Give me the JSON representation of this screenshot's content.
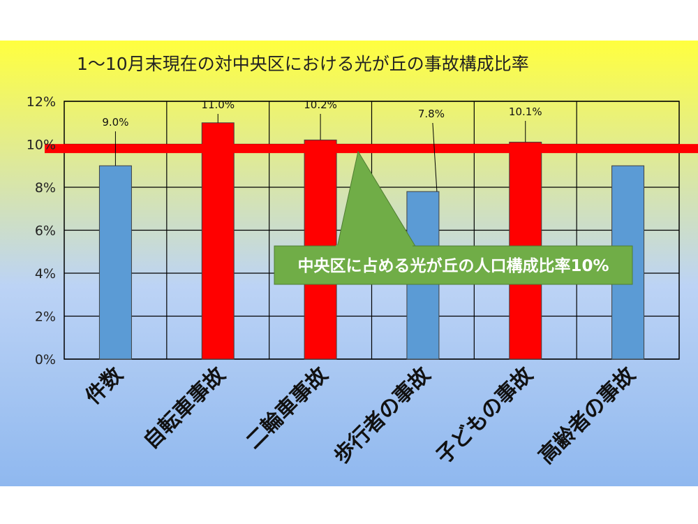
{
  "chart_data": {
    "type": "bar",
    "title": "1～10月末現在の対中央区における光が丘の事故構成比率",
    "categories": [
      "件数",
      "自転車事故",
      "二輪車事故",
      "歩行者の事故",
      "子どもの事故",
      "高齢者の事故"
    ],
    "values": [
      9.0,
      11.0,
      10.2,
      7.8,
      10.1,
      9.0
    ],
    "data_labels": [
      "9.0%",
      "11.0%",
      "10.2%",
      "7.8%",
      "10.1%",
      ""
    ],
    "bar_colors": [
      "#5b9bd5",
      "#ff0000",
      "#ff0000",
      "#5b9bd5",
      "#ff0000",
      "#5b9bd5"
    ],
    "y_ticks": [
      "0%",
      "2%",
      "4%",
      "6%",
      "8%",
      "10%",
      "12%"
    ],
    "ylim": [
      0,
      12
    ],
    "grid": true,
    "reference_line": {
      "value": 9.8,
      "color": "#ff0000"
    },
    "annotation": {
      "text": "中央区に占める光が丘の人口構成比率10%",
      "color": "#70ad47"
    },
    "background_gradient": [
      "#ffff3f",
      "#bcd3f5",
      "#8fb8ef"
    ]
  }
}
